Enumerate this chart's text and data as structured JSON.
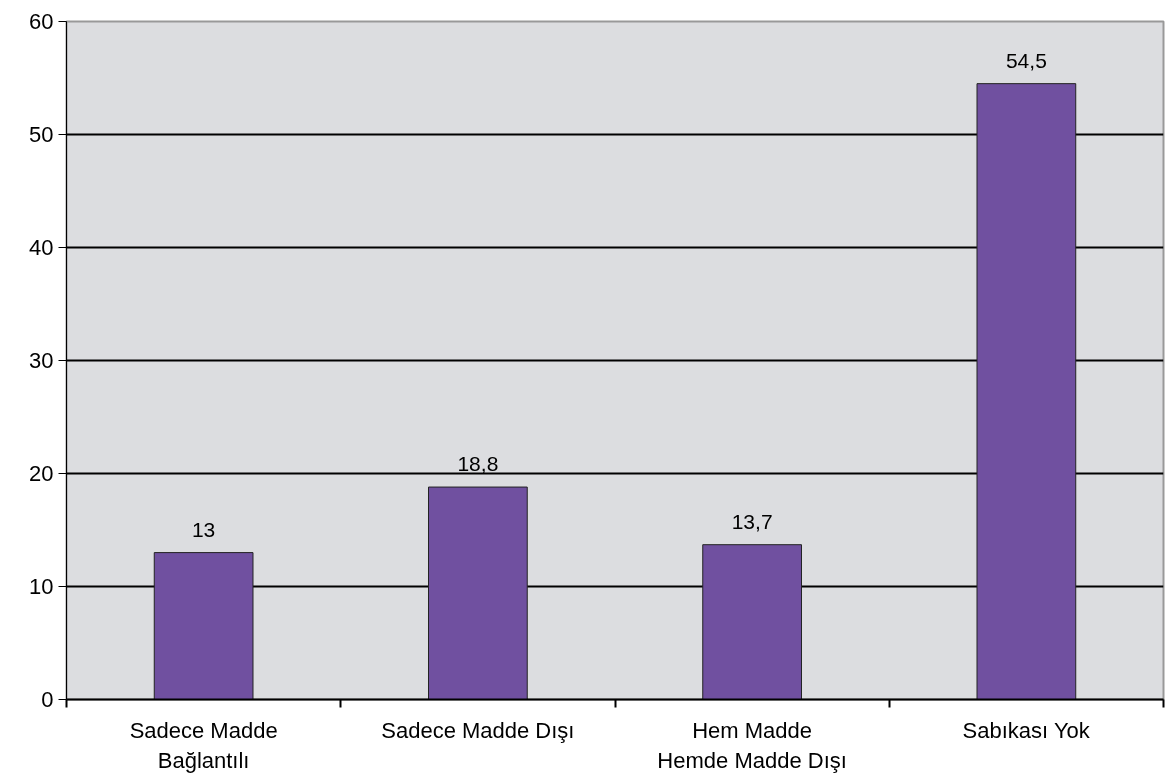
{
  "chart_data": {
    "type": "bar",
    "categories": [
      "Sadece Madde\nBağlantılı",
      "Sadece Madde Dışı",
      "Hem Madde\nHemde Madde Dışı",
      "Sabıkası Yok"
    ],
    "values": [
      13,
      18.8,
      13.7,
      54.5
    ],
    "value_labels": [
      "13",
      "18,8",
      "13,7",
      "54,5"
    ],
    "color": "#7050a0",
    "ylim": [
      0,
      60
    ],
    "yticks": [
      0,
      10,
      20,
      30,
      40,
      50,
      60
    ],
    "grid": "y"
  }
}
